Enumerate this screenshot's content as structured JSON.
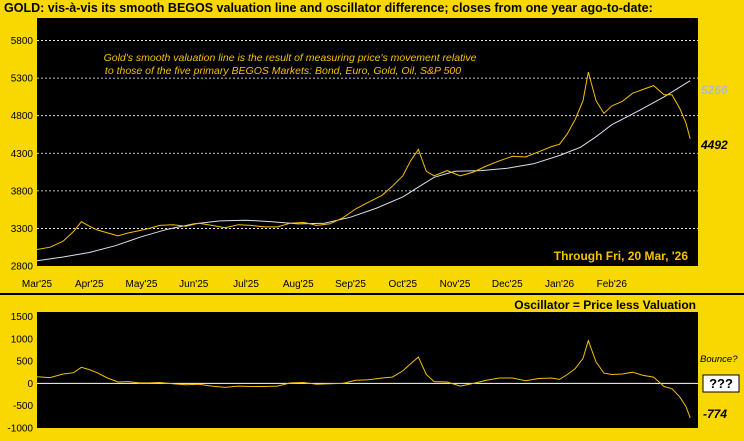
{
  "chart_data": [
    {
      "type": "line",
      "title": "GOLD:  vis-à-vis its smooth BEGOS valuation line and oscillator difference; closes from one year ago-to-date:",
      "annotation_lines": [
        "Gold's smooth valuation line is the result of measuring price's movement relative",
        "to those of the five primary BEGOS Markets:  Bond, Euro, Gold, Oil, S&P 500"
      ],
      "through_label": "Through Fri, 20 Mar, '26",
      "x_tick_labels": [
        "Mar'25",
        "Apr'25",
        "May'25",
        "Jun'25",
        "Jul'25",
        "Aug'25",
        "Sep'25",
        "Oct'25",
        "Nov'25",
        "Dec'25",
        "Jan'26",
        "Feb'26"
      ],
      "y_ticks": [
        2800,
        3300,
        3800,
        4300,
        4800,
        5300,
        5800
      ],
      "ylim": [
        2800,
        6100
      ],
      "x_range": [
        0,
        12.65
      ],
      "last_valuation_label": "5266",
      "last_price_label": "4492",
      "colors": {
        "price": "#F4C000",
        "valuation": "#D8E0F0",
        "grid": "#FFFFFF",
        "valuation_label": "#B4BCCC",
        "annotation": "#F4C000",
        "panel": "#000000",
        "bg": "#F8D800"
      },
      "series": [
        {
          "name": "Price",
          "points": [
            [
              0,
              3020
            ],
            [
              0.25,
              3050
            ],
            [
              0.5,
              3130
            ],
            [
              0.7,
              3260
            ],
            [
              0.85,
              3390
            ],
            [
              1.0,
              3330
            ],
            [
              1.15,
              3280
            ],
            [
              1.35,
              3240
            ],
            [
              1.55,
              3200
            ],
            [
              1.75,
              3240
            ],
            [
              1.95,
              3270
            ],
            [
              2.15,
              3300
            ],
            [
              2.35,
              3340
            ],
            [
              2.6,
              3350
            ],
            [
              2.85,
              3330
            ],
            [
              3.1,
              3370
            ],
            [
              3.35,
              3340
            ],
            [
              3.6,
              3310
            ],
            [
              3.85,
              3350
            ],
            [
              4.1,
              3340
            ],
            [
              4.35,
              3320
            ],
            [
              4.6,
              3320
            ],
            [
              4.85,
              3370
            ],
            [
              5.1,
              3380
            ],
            [
              5.35,
              3340
            ],
            [
              5.6,
              3360
            ],
            [
              5.85,
              3440
            ],
            [
              6.1,
              3560
            ],
            [
              6.35,
              3650
            ],
            [
              6.6,
              3740
            ],
            [
              6.8,
              3860
            ],
            [
              7.0,
              4000
            ],
            [
              7.15,
              4200
            ],
            [
              7.3,
              4350
            ],
            [
              7.45,
              4060
            ],
            [
              7.6,
              4000
            ],
            [
              7.85,
              4070
            ],
            [
              8.1,
              4000
            ],
            [
              8.35,
              4050
            ],
            [
              8.6,
              4130
            ],
            [
              8.85,
              4200
            ],
            [
              9.1,
              4260
            ],
            [
              9.35,
              4250
            ],
            [
              9.6,
              4320
            ],
            [
              9.85,
              4390
            ],
            [
              10.0,
              4420
            ],
            [
              10.15,
              4560
            ],
            [
              10.3,
              4750
            ],
            [
              10.45,
              5000
            ],
            [
              10.55,
              5380
            ],
            [
              10.7,
              5000
            ],
            [
              10.85,
              4830
            ],
            [
              11.0,
              4930
            ],
            [
              11.2,
              4990
            ],
            [
              11.4,
              5100
            ],
            [
              11.6,
              5150
            ],
            [
              11.8,
              5200
            ],
            [
              12.0,
              5080
            ],
            [
              12.15,
              5080
            ],
            [
              12.3,
              4900
            ],
            [
              12.42,
              4700
            ],
            [
              12.5,
              4492
            ]
          ]
        },
        {
          "name": "Valuation",
          "points": [
            [
              0,
              2870
            ],
            [
              0.5,
              2920
            ],
            [
              1.0,
              2980
            ],
            [
              1.5,
              3070
            ],
            [
              2.0,
              3190
            ],
            [
              2.5,
              3290
            ],
            [
              3.0,
              3360
            ],
            [
              3.5,
              3400
            ],
            [
              4.0,
              3410
            ],
            [
              4.5,
              3390
            ],
            [
              5.0,
              3360
            ],
            [
              5.5,
              3370
            ],
            [
              6.0,
              3450
            ],
            [
              6.5,
              3570
            ],
            [
              7.0,
              3720
            ],
            [
              7.3,
              3850
            ],
            [
              7.6,
              3980
            ],
            [
              8.0,
              4060
            ],
            [
              8.5,
              4070
            ],
            [
              9.0,
              4100
            ],
            [
              9.5,
              4160
            ],
            [
              10.0,
              4270
            ],
            [
              10.4,
              4380
            ],
            [
              10.7,
              4520
            ],
            [
              11.0,
              4680
            ],
            [
              11.5,
              4860
            ],
            [
              12.0,
              5050
            ],
            [
              12.5,
              5266
            ]
          ]
        }
      ]
    },
    {
      "type": "line",
      "title": "Oscillator = Price less Valuation",
      "y_ticks": [
        -1000,
        -500,
        0,
        500,
        1000,
        1500
      ],
      "ylim": [
        -1000,
        1600
      ],
      "x_range": [
        0,
        12.65
      ],
      "last_value_label": "-774",
      "bounce_label": "Bounce?",
      "bounce_box_label": "???",
      "series": [
        {
          "name": "Oscillator",
          "points": [
            [
              0,
              150
            ],
            [
              0.25,
              130
            ],
            [
              0.5,
              210
            ],
            [
              0.7,
              240
            ],
            [
              0.85,
              360
            ],
            [
              1.0,
              310
            ],
            [
              1.15,
              240
            ],
            [
              1.35,
              120
            ],
            [
              1.55,
              30
            ],
            [
              1.75,
              40
            ],
            [
              1.95,
              10
            ],
            [
              2.15,
              10
            ],
            [
              2.35,
              20
            ],
            [
              2.6,
              -10
            ],
            [
              2.85,
              -30
            ],
            [
              3.1,
              -20
            ],
            [
              3.35,
              -60
            ],
            [
              3.6,
              -90
            ],
            [
              3.85,
              -60
            ],
            [
              4.1,
              -70
            ],
            [
              4.35,
              -70
            ],
            [
              4.6,
              -60
            ],
            [
              4.85,
              10
            ],
            [
              5.1,
              20
            ],
            [
              5.35,
              -20
            ],
            [
              5.6,
              -10
            ],
            [
              5.85,
              0
            ],
            [
              6.1,
              70
            ],
            [
              6.35,
              80
            ],
            [
              6.6,
              120
            ],
            [
              6.8,
              140
            ],
            [
              7.0,
              280
            ],
            [
              7.15,
              440
            ],
            [
              7.3,
              590
            ],
            [
              7.45,
              200
            ],
            [
              7.6,
              40
            ],
            [
              7.85,
              30
            ],
            [
              8.1,
              -60
            ],
            [
              8.35,
              0
            ],
            [
              8.6,
              70
            ],
            [
              8.85,
              120
            ],
            [
              9.1,
              120
            ],
            [
              9.35,
              60
            ],
            [
              9.6,
              110
            ],
            [
              9.85,
              120
            ],
            [
              10.0,
              90
            ],
            [
              10.15,
              200
            ],
            [
              10.3,
              330
            ],
            [
              10.45,
              560
            ],
            [
              10.55,
              960
            ],
            [
              10.7,
              480
            ],
            [
              10.85,
              230
            ],
            [
              11.0,
              200
            ],
            [
              11.2,
              210
            ],
            [
              11.4,
              250
            ],
            [
              11.6,
              180
            ],
            [
              11.8,
              140
            ],
            [
              12.0,
              -70
            ],
            [
              12.15,
              -120
            ],
            [
              12.3,
              -300
            ],
            [
              12.42,
              -520
            ],
            [
              12.5,
              -774
            ]
          ]
        }
      ]
    }
  ]
}
